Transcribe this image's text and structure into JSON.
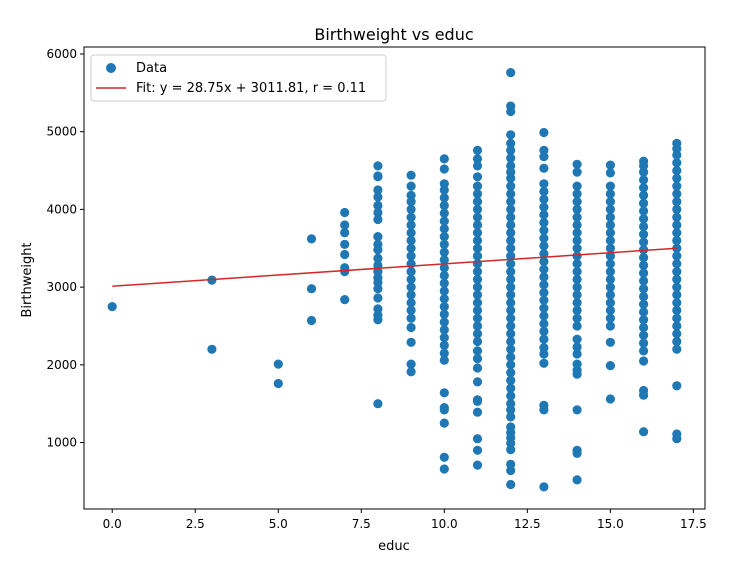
{
  "chart_data": {
    "type": "scatter",
    "title": "Birthweight vs educ",
    "xlabel": "educ",
    "ylabel": "Birthweight",
    "xlim": [
      -0.85,
      17.85
    ],
    "ylim": [
      145,
      6090
    ],
    "xticks": [
      0,
      2.5,
      5,
      7.5,
      10,
      12.5,
      15,
      17.5
    ],
    "xtick_labels": [
      "0.0",
      "2.5",
      "5.0",
      "7.5",
      "10.0",
      "12.5",
      "15.0",
      "17.5"
    ],
    "yticks": [
      1000,
      2000,
      3000,
      4000,
      5000,
      6000
    ],
    "ytick_labels": [
      "1000",
      "2000",
      "3000",
      "4000",
      "5000",
      "6000"
    ],
    "grid": false,
    "legend_position": "upper-left",
    "marker_color": "#1f77b4",
    "fit_color": "#d62728",
    "series": [
      {
        "name": "Data",
        "kind": "scatter",
        "points": [
          [
            0,
            2750
          ],
          [
            3,
            3090
          ],
          [
            3,
            2200
          ],
          [
            5,
            2010
          ],
          [
            5,
            1760
          ],
          [
            6,
            3620
          ],
          [
            6,
            2980
          ],
          [
            6,
            2570
          ],
          [
            7,
            3960
          ],
          [
            7,
            3800
          ],
          [
            7,
            3700
          ],
          [
            7,
            3550
          ],
          [
            7,
            3420
          ],
          [
            7,
            3250
          ],
          [
            7,
            3200
          ],
          [
            7,
            2840
          ],
          [
            8,
            4560
          ],
          [
            8,
            4430
          ],
          [
            8,
            4420
          ],
          [
            8,
            4250
          ],
          [
            8,
            4160
          ],
          [
            8,
            4050
          ],
          [
            8,
            3960
          ],
          [
            8,
            3870
          ],
          [
            8,
            3650
          ],
          [
            8,
            3550
          ],
          [
            8,
            3480
          ],
          [
            8,
            3370
          ],
          [
            8,
            3280
          ],
          [
            8,
            3200
          ],
          [
            8,
            3120
          ],
          [
            8,
            3060
          ],
          [
            8,
            2980
          ],
          [
            8,
            2860
          ],
          [
            8,
            2720
          ],
          [
            8,
            2640
          ],
          [
            8,
            2580
          ],
          [
            8,
            1500
          ],
          [
            9,
            4440
          ],
          [
            9,
            4300
          ],
          [
            9,
            4180
          ],
          [
            9,
            4100
          ],
          [
            9,
            4000
          ],
          [
            9,
            3900
          ],
          [
            9,
            3800
          ],
          [
            9,
            3700
          ],
          [
            9,
            3600
          ],
          [
            9,
            3500
          ],
          [
            9,
            3400
          ],
          [
            9,
            3300
          ],
          [
            9,
            3200
          ],
          [
            9,
            3100
          ],
          [
            9,
            3000
          ],
          [
            9,
            2900
          ],
          [
            9,
            2800
          ],
          [
            9,
            2700
          ],
          [
            9,
            2600
          ],
          [
            9,
            2480
          ],
          [
            9,
            2290
          ],
          [
            9,
            2010
          ],
          [
            9,
            1910
          ],
          [
            10,
            4650
          ],
          [
            10,
            4520
          ],
          [
            10,
            4330
          ],
          [
            10,
            4250
          ],
          [
            10,
            4150
          ],
          [
            10,
            4050
          ],
          [
            10,
            3950
          ],
          [
            10,
            3850
          ],
          [
            10,
            3750
          ],
          [
            10,
            3650
          ],
          [
            10,
            3550
          ],
          [
            10,
            3450
          ],
          [
            10,
            3350
          ],
          [
            10,
            3250
          ],
          [
            10,
            3150
          ],
          [
            10,
            3050
          ],
          [
            10,
            2950
          ],
          [
            10,
            2850
          ],
          [
            10,
            2750
          ],
          [
            10,
            2650
          ],
          [
            10,
            2550
          ],
          [
            10,
            2450
          ],
          [
            10,
            2350
          ],
          [
            10,
            2250
          ],
          [
            10,
            2150
          ],
          [
            10,
            2060
          ],
          [
            10,
            1640
          ],
          [
            10,
            1450
          ],
          [
            10,
            1420
          ],
          [
            10,
            1250
          ],
          [
            10,
            810
          ],
          [
            10,
            660
          ],
          [
            11,
            4760
          ],
          [
            11,
            4650
          ],
          [
            11,
            4560
          ],
          [
            11,
            4420
          ],
          [
            11,
            4300
          ],
          [
            11,
            4200
          ],
          [
            11,
            4100
          ],
          [
            11,
            4000
          ],
          [
            11,
            3900
          ],
          [
            11,
            3800
          ],
          [
            11,
            3700
          ],
          [
            11,
            3600
          ],
          [
            11,
            3500
          ],
          [
            11,
            3400
          ],
          [
            11,
            3300
          ],
          [
            11,
            3200
          ],
          [
            11,
            3100
          ],
          [
            11,
            3000
          ],
          [
            11,
            2900
          ],
          [
            11,
            2800
          ],
          [
            11,
            2700
          ],
          [
            11,
            2600
          ],
          [
            11,
            2500
          ],
          [
            11,
            2400
          ],
          [
            11,
            2300
          ],
          [
            11,
            2180
          ],
          [
            11,
            2080
          ],
          [
            11,
            1960
          ],
          [
            11,
            1780
          ],
          [
            11,
            1550
          ],
          [
            11,
            1530
          ],
          [
            11,
            1390
          ],
          [
            11,
            1050
          ],
          [
            11,
            900
          ],
          [
            11,
            710
          ],
          [
            12,
            5760
          ],
          [
            12,
            5330
          ],
          [
            12,
            5260
          ],
          [
            12,
            4960
          ],
          [
            12,
            4850
          ],
          [
            12,
            4760
          ],
          [
            12,
            4660
          ],
          [
            12,
            4560
          ],
          [
            12,
            4480
          ],
          [
            12,
            4400
          ],
          [
            12,
            4300
          ],
          [
            12,
            4200
          ],
          [
            12,
            4100
          ],
          [
            12,
            4000
          ],
          [
            12,
            3900
          ],
          [
            12,
            3800
          ],
          [
            12,
            3700
          ],
          [
            12,
            3600
          ],
          [
            12,
            3500
          ],
          [
            12,
            3400
          ],
          [
            12,
            3300
          ],
          [
            12,
            3200
          ],
          [
            12,
            3100
          ],
          [
            12,
            3000
          ],
          [
            12,
            2900
          ],
          [
            12,
            2800
          ],
          [
            12,
            2700
          ],
          [
            12,
            2600
          ],
          [
            12,
            2500
          ],
          [
            12,
            2400
          ],
          [
            12,
            2300
          ],
          [
            12,
            2200
          ],
          [
            12,
            2100
          ],
          [
            12,
            2000
          ],
          [
            12,
            1900
          ],
          [
            12,
            1800
          ],
          [
            12,
            1700
          ],
          [
            12,
            1600
          ],
          [
            12,
            1500
          ],
          [
            12,
            1420
          ],
          [
            12,
            1330
          ],
          [
            12,
            1200
          ],
          [
            12,
            1130
          ],
          [
            12,
            1060
          ],
          [
            12,
            990
          ],
          [
            12,
            910
          ],
          [
            12,
            720
          ],
          [
            12,
            640
          ],
          [
            12,
            460
          ],
          [
            13,
            4990
          ],
          [
            13,
            4760
          ],
          [
            13,
            4680
          ],
          [
            13,
            4530
          ],
          [
            13,
            4330
          ],
          [
            13,
            4230
          ],
          [
            13,
            4130
          ],
          [
            13,
            4030
          ],
          [
            13,
            3930
          ],
          [
            13,
            3830
          ],
          [
            13,
            3730
          ],
          [
            13,
            3630
          ],
          [
            13,
            3530
          ],
          [
            13,
            3430
          ],
          [
            13,
            3330
          ],
          [
            13,
            3230
          ],
          [
            13,
            3130
          ],
          [
            13,
            3030
          ],
          [
            13,
            2930
          ],
          [
            13,
            2830
          ],
          [
            13,
            2730
          ],
          [
            13,
            2630
          ],
          [
            13,
            2530
          ],
          [
            13,
            2430
          ],
          [
            13,
            2330
          ],
          [
            13,
            2220
          ],
          [
            13,
            2140
          ],
          [
            13,
            2020
          ],
          [
            13,
            1480
          ],
          [
            13,
            1420
          ],
          [
            13,
            430
          ],
          [
            14,
            4580
          ],
          [
            14,
            4480
          ],
          [
            14,
            4300
          ],
          [
            14,
            4200
          ],
          [
            14,
            4100
          ],
          [
            14,
            4000
          ],
          [
            14,
            3900
          ],
          [
            14,
            3800
          ],
          [
            14,
            3700
          ],
          [
            14,
            3600
          ],
          [
            14,
            3500
          ],
          [
            14,
            3400
          ],
          [
            14,
            3300
          ],
          [
            14,
            3200
          ],
          [
            14,
            3100
          ],
          [
            14,
            3000
          ],
          [
            14,
            2900
          ],
          [
            14,
            2800
          ],
          [
            14,
            2700
          ],
          [
            14,
            2600
          ],
          [
            14,
            2500
          ],
          [
            14,
            2330
          ],
          [
            14,
            2230
          ],
          [
            14,
            2140
          ],
          [
            14,
            2010
          ],
          [
            14,
            1930
          ],
          [
            14,
            1880
          ],
          [
            14,
            1420
          ],
          [
            14,
            900
          ],
          [
            14,
            860
          ],
          [
            14,
            520
          ],
          [
            15,
            4570
          ],
          [
            15,
            4470
          ],
          [
            15,
            4300
          ],
          [
            15,
            4200
          ],
          [
            15,
            4100
          ],
          [
            15,
            4000
          ],
          [
            15,
            3900
          ],
          [
            15,
            3800
          ],
          [
            15,
            3700
          ],
          [
            15,
            3600
          ],
          [
            15,
            3500
          ],
          [
            15,
            3400
          ],
          [
            15,
            3300
          ],
          [
            15,
            3200
          ],
          [
            15,
            3100
          ],
          [
            15,
            3000
          ],
          [
            15,
            2900
          ],
          [
            15,
            2800
          ],
          [
            15,
            2700
          ],
          [
            15,
            2600
          ],
          [
            15,
            2500
          ],
          [
            15,
            2290
          ],
          [
            15,
            1990
          ],
          [
            15,
            1560
          ],
          [
            16,
            4620
          ],
          [
            16,
            4560
          ],
          [
            16,
            4480
          ],
          [
            16,
            4380
          ],
          [
            16,
            4280
          ],
          [
            16,
            4180
          ],
          [
            16,
            4080
          ],
          [
            16,
            3980
          ],
          [
            16,
            3880
          ],
          [
            16,
            3780
          ],
          [
            16,
            3680
          ],
          [
            16,
            3580
          ],
          [
            16,
            3480
          ],
          [
            16,
            3380
          ],
          [
            16,
            3280
          ],
          [
            16,
            3180
          ],
          [
            16,
            3080
          ],
          [
            16,
            2980
          ],
          [
            16,
            2880
          ],
          [
            16,
            2780
          ],
          [
            16,
            2680
          ],
          [
            16,
            2580
          ],
          [
            16,
            2480
          ],
          [
            16,
            2380
          ],
          [
            16,
            2280
          ],
          [
            16,
            2180
          ],
          [
            16,
            2050
          ],
          [
            16,
            1670
          ],
          [
            16,
            1610
          ],
          [
            16,
            1140
          ],
          [
            17,
            4850
          ],
          [
            17,
            4780
          ],
          [
            17,
            4700
          ],
          [
            17,
            4600
          ],
          [
            17,
            4500
          ],
          [
            17,
            4400
          ],
          [
            17,
            4300
          ],
          [
            17,
            4200
          ],
          [
            17,
            4100
          ],
          [
            17,
            4000
          ],
          [
            17,
            3900
          ],
          [
            17,
            3800
          ],
          [
            17,
            3700
          ],
          [
            17,
            3600
          ],
          [
            17,
            3500
          ],
          [
            17,
            3400
          ],
          [
            17,
            3300
          ],
          [
            17,
            3200
          ],
          [
            17,
            3100
          ],
          [
            17,
            3000
          ],
          [
            17,
            2900
          ],
          [
            17,
            2800
          ],
          [
            17,
            2700
          ],
          [
            17,
            2600
          ],
          [
            17,
            2500
          ],
          [
            17,
            2400
          ],
          [
            17,
            2300
          ],
          [
            17,
            2200
          ],
          [
            17,
            1730
          ],
          [
            17,
            1110
          ],
          [
            17,
            1050
          ]
        ]
      },
      {
        "name": "Fit: y = 28.75x + 3011.81, r = 0.11",
        "kind": "line",
        "slope": 28.75,
        "intercept": 3011.81,
        "x_range": [
          0,
          17
        ]
      }
    ]
  }
}
